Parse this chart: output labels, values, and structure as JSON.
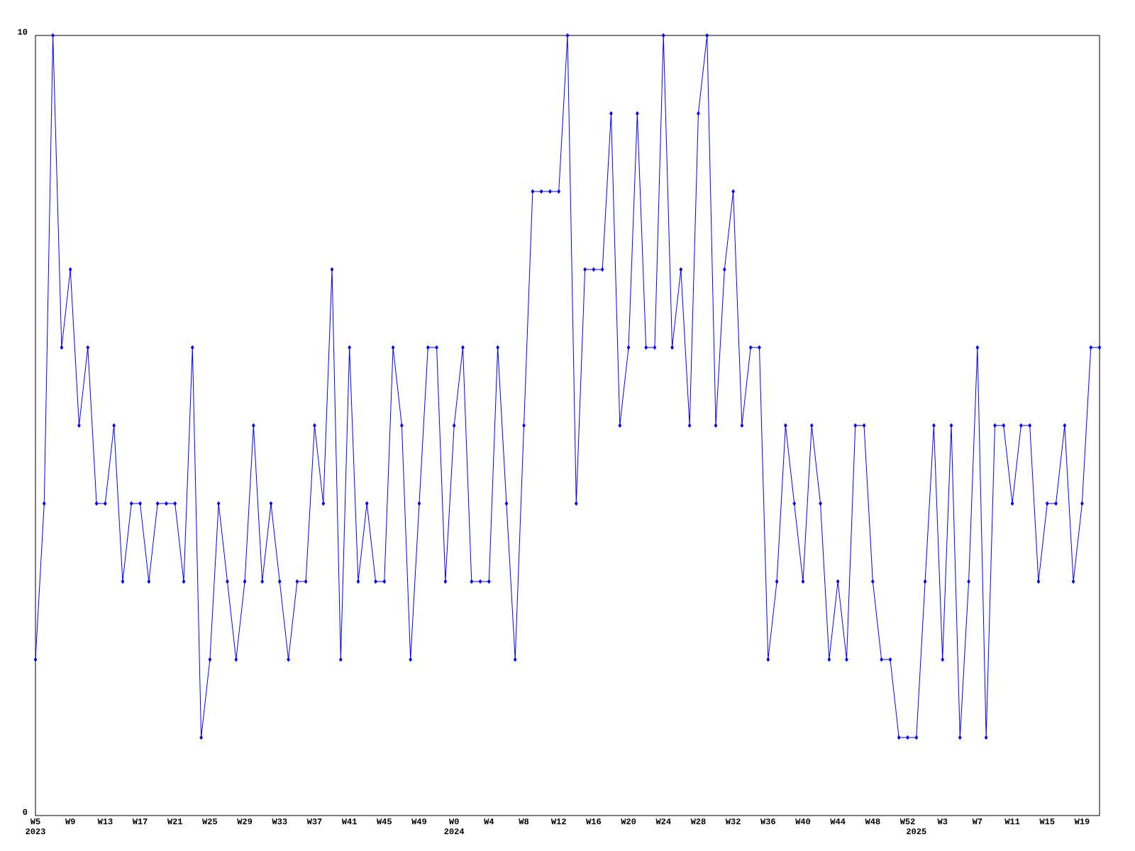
{
  "chart_data": {
    "type": "line",
    "color": "#0000ff",
    "marker": "diamond",
    "categories": [
      "W5 2023",
      null,
      null,
      null,
      "W9",
      null,
      null,
      null,
      "W13",
      null,
      null,
      null,
      "W17",
      null,
      null,
      null,
      "W21",
      null,
      null,
      null,
      "W25",
      null,
      null,
      null,
      "W29",
      null,
      null,
      null,
      "W33",
      null,
      null,
      null,
      "W37",
      null,
      null,
      null,
      "W41",
      null,
      null,
      null,
      "W45",
      null,
      null,
      null,
      "W49",
      null,
      null,
      null,
      "W0 2024",
      null,
      null,
      null,
      "W4",
      null,
      null,
      null,
      "W8",
      null,
      null,
      null,
      "W12",
      null,
      null,
      null,
      "W16",
      null,
      null,
      null,
      "W20",
      null,
      null,
      null,
      "W24",
      null,
      null,
      null,
      "W28",
      null,
      null,
      null,
      "W32",
      null,
      null,
      null,
      "W36",
      null,
      null,
      null,
      "W40",
      null,
      null,
      null,
      "W44",
      null,
      null,
      null,
      "W48",
      null,
      null,
      null,
      "W52",
      "2025",
      null,
      null,
      "W3",
      null,
      null,
      null,
      "W7",
      null,
      null,
      null,
      "W11",
      null,
      null,
      null,
      "W15",
      null,
      null,
      null,
      "W19",
      null,
      null
    ],
    "values": [
      2,
      4,
      10,
      6,
      7,
      5,
      6,
      4,
      4,
      5,
      3,
      4,
      4,
      3,
      4,
      4,
      4,
      3,
      6,
      1,
      2,
      4,
      3,
      2,
      3,
      5,
      3,
      4,
      3,
      2,
      3,
      3,
      5,
      4,
      7,
      2,
      6,
      3,
      4,
      3,
      3,
      6,
      5,
      2,
      4,
      6,
      6,
      3,
      5,
      6,
      3,
      3,
      3,
      6,
      4,
      2,
      5,
      8,
      8,
      8,
      8,
      10,
      4,
      7,
      7,
      7,
      9,
      5,
      6,
      9,
      6,
      6,
      10,
      6,
      7,
      5,
      9,
      10,
      5,
      7,
      8,
      5,
      6,
      6,
      2,
      3,
      5,
      4,
      3,
      5,
      4,
      2,
      3,
      2,
      5,
      5,
      3,
      2,
      2,
      1,
      1,
      1,
      3,
      5,
      2,
      5,
      1,
      3,
      6,
      1,
      5,
      5,
      4,
      5,
      5,
      3,
      4,
      4,
      5,
      3,
      4,
      6,
      6
    ],
    "ylim": [
      0,
      10
    ],
    "yticks": [
      0,
      10
    ]
  }
}
